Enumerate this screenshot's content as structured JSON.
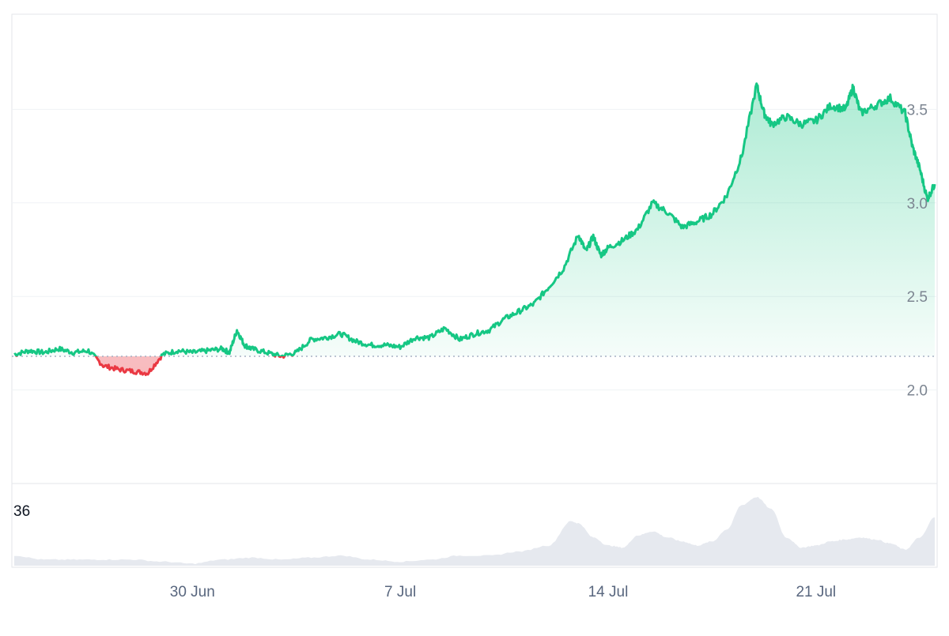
{
  "chart_data": {
    "type": "line",
    "x_label_ticks": [
      "30 Jun",
      "7 Jul",
      "14 Jul",
      "21 Jul"
    ],
    "y_ticks": [
      "2.0",
      "2.5",
      "3.0",
      "3.5"
    ],
    "ylim": [
      1.5,
      4.0
    ],
    "x_start": "2025-06-24",
    "x_end": "2025-07-25",
    "baseline": 2.18,
    "volume_label": "36",
    "grid": true,
    "colors": {
      "up": "#16c784",
      "down": "#ea3943",
      "grid": "#eff2f5",
      "baseline": "#a6b0c3",
      "volume": "#e6e9ef"
    },
    "price_series": [
      [
        "2025-06-24",
        2.19
      ],
      [
        "2025-06-24T12",
        2.21
      ],
      [
        "2025-06-25",
        2.2
      ],
      [
        "2025-06-25T12",
        2.22
      ],
      [
        "2025-06-26",
        2.2
      ],
      [
        "2025-06-26T12",
        2.21
      ],
      [
        "2025-06-27",
        2.13
      ],
      [
        "2025-06-27T12",
        2.11
      ],
      [
        "2025-06-28",
        2.1
      ],
      [
        "2025-06-28T12",
        2.09
      ],
      [
        "2025-06-29",
        2.19
      ],
      [
        "2025-06-29T12",
        2.21
      ],
      [
        "2025-06-30",
        2.2
      ],
      [
        "2025-06-30T12",
        2.21
      ],
      [
        "2025-07-01",
        2.22
      ],
      [
        "2025-07-01T06",
        2.2
      ],
      [
        "2025-07-01T12",
        2.32
      ],
      [
        "2025-07-01T18",
        2.24
      ],
      [
        "2025-07-02",
        2.22
      ],
      [
        "2025-07-02T12",
        2.2
      ],
      [
        "2025-07-03",
        2.18
      ],
      [
        "2025-07-03T12",
        2.2
      ],
      [
        "2025-07-04",
        2.27
      ],
      [
        "2025-07-04T12",
        2.28
      ],
      [
        "2025-07-05",
        2.3
      ],
      [
        "2025-07-05T12",
        2.26
      ],
      [
        "2025-07-06",
        2.24
      ],
      [
        "2025-07-06T12",
        2.24
      ],
      [
        "2025-07-07",
        2.23
      ],
      [
        "2025-07-07T12",
        2.28
      ],
      [
        "2025-07-08",
        2.28
      ],
      [
        "2025-07-08T12",
        2.33
      ],
      [
        "2025-07-09",
        2.27
      ],
      [
        "2025-07-09T12",
        2.3
      ],
      [
        "2025-07-10",
        2.32
      ],
      [
        "2025-07-10T12",
        2.38
      ],
      [
        "2025-07-11",
        2.42
      ],
      [
        "2025-07-11T12",
        2.46
      ],
      [
        "2025-07-12",
        2.55
      ],
      [
        "2025-07-12T12",
        2.65
      ],
      [
        "2025-07-13",
        2.83
      ],
      [
        "2025-07-13T06",
        2.74
      ],
      [
        "2025-07-13T12",
        2.82
      ],
      [
        "2025-07-13T18",
        2.72
      ],
      [
        "2025-07-14",
        2.76
      ],
      [
        "2025-07-14T12",
        2.8
      ],
      [
        "2025-07-15",
        2.86
      ],
      [
        "2025-07-15T12",
        3.0
      ],
      [
        "2025-07-16",
        2.95
      ],
      [
        "2025-07-16T12",
        2.87
      ],
      [
        "2025-07-17",
        2.9
      ],
      [
        "2025-07-17T12",
        2.94
      ],
      [
        "2025-07-18",
        3.04
      ],
      [
        "2025-07-18T12",
        3.25
      ],
      [
        "2025-07-19",
        3.63
      ],
      [
        "2025-07-19T06",
        3.48
      ],
      [
        "2025-07-19T12",
        3.42
      ],
      [
        "2025-07-20",
        3.46
      ],
      [
        "2025-07-20T12",
        3.42
      ],
      [
        "2025-07-21",
        3.44
      ],
      [
        "2025-07-21T12",
        3.52
      ],
      [
        "2025-07-22",
        3.5
      ],
      [
        "2025-07-22T06",
        3.62
      ],
      [
        "2025-07-22T12",
        3.48
      ],
      [
        "2025-07-23",
        3.52
      ],
      [
        "2025-07-23T12",
        3.56
      ],
      [
        "2025-07-24",
        3.48
      ],
      [
        "2025-07-24T06",
        3.3
      ],
      [
        "2025-07-24T12",
        3.18
      ],
      [
        "2025-07-24T18",
        3.02
      ],
      [
        "2025-07-25",
        3.1
      ]
    ],
    "volume_series": [
      [
        "2025-06-24",
        5
      ],
      [
        "2025-06-25",
        3
      ],
      [
        "2025-06-26",
        3
      ],
      [
        "2025-06-27",
        3
      ],
      [
        "2025-06-28",
        3
      ],
      [
        "2025-06-29",
        2
      ],
      [
        "2025-06-30",
        1
      ],
      [
        "2025-07-01",
        3
      ],
      [
        "2025-07-02",
        4
      ],
      [
        "2025-07-03",
        3
      ],
      [
        "2025-07-04",
        4
      ],
      [
        "2025-07-05",
        5
      ],
      [
        "2025-07-06",
        3
      ],
      [
        "2025-07-07",
        2
      ],
      [
        "2025-07-08",
        3
      ],
      [
        "2025-07-09",
        5
      ],
      [
        "2025-07-10",
        5
      ],
      [
        "2025-07-11",
        7
      ],
      [
        "2025-07-12",
        10
      ],
      [
        "2025-07-12T18",
        22
      ],
      [
        "2025-07-13",
        21
      ],
      [
        "2025-07-13T12",
        14
      ],
      [
        "2025-07-14",
        10
      ],
      [
        "2025-07-14T12",
        9
      ],
      [
        "2025-07-15",
        15
      ],
      [
        "2025-07-15T12",
        17
      ],
      [
        "2025-07-16",
        14
      ],
      [
        "2025-07-16T12",
        12
      ],
      [
        "2025-07-17",
        10
      ],
      [
        "2025-07-17T12",
        12
      ],
      [
        "2025-07-18",
        18
      ],
      [
        "2025-07-18T12",
        30
      ],
      [
        "2025-07-19",
        34
      ],
      [
        "2025-07-19T12",
        28
      ],
      [
        "2025-07-20",
        14
      ],
      [
        "2025-07-20T12",
        9
      ],
      [
        "2025-07-21",
        10
      ],
      [
        "2025-07-21T12",
        12
      ],
      [
        "2025-07-22",
        13
      ],
      [
        "2025-07-22T12",
        14
      ],
      [
        "2025-07-23",
        13
      ],
      [
        "2025-07-23T12",
        11
      ],
      [
        "2025-07-24",
        8
      ],
      [
        "2025-07-24T12",
        14
      ],
      [
        "2025-07-25",
        24
      ]
    ]
  }
}
